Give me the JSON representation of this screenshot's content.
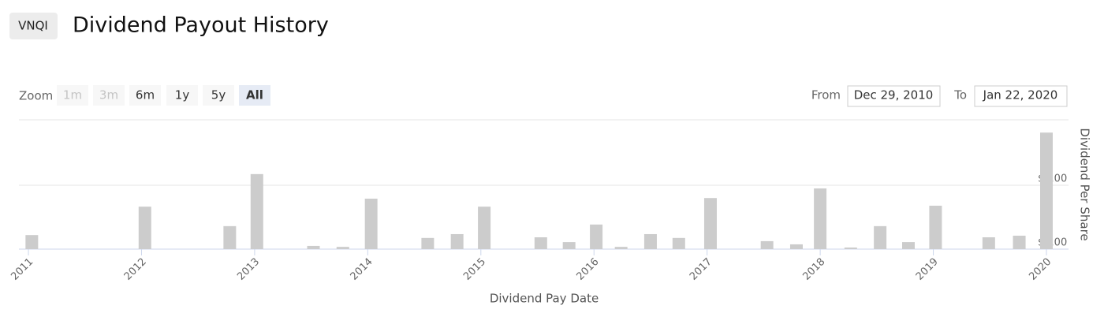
{
  "ticker": "VNQI",
  "zoom": {
    "label": "Zoom",
    "options": [
      "1m",
      "3m",
      "6m",
      "1y",
      "5y",
      "All"
    ],
    "disabled": [
      "1m",
      "3m"
    ],
    "selected": "All"
  },
  "range": {
    "from_label": "From",
    "from": "Dec 29, 2010",
    "to_label": "To",
    "to": "Jan 22, 2020"
  },
  "chart_data": {
    "type": "bar",
    "title": "Dividend Payout History",
    "x_label": "Dividend Pay Date",
    "y_label": "Dividend Per Share",
    "x": [
      2011.03,
      2012.03,
      2012.78,
      2013.02,
      2013.52,
      2013.78,
      2014.03,
      2014.53,
      2014.79,
      2015.03,
      2015.53,
      2015.78,
      2016.02,
      2016.24,
      2016.5,
      2016.75,
      2017.03,
      2017.53,
      2017.79,
      2018.0,
      2018.27,
      2018.53,
      2018.78,
      2019.02,
      2019.49,
      2019.76,
      2020.0
    ],
    "values": [
      0.44,
      1.33,
      0.72,
      2.35,
      0.1,
      0.07,
      1.58,
      0.35,
      0.47,
      1.33,
      0.37,
      0.22,
      0.77,
      0.07,
      0.47,
      0.35,
      1.6,
      0.25,
      0.15,
      1.9,
      0.05,
      0.72,
      0.22,
      1.36,
      0.37,
      0.42,
      3.65
    ],
    "color": "#cccccc",
    "xlim": [
      2010.99,
      2020.06
    ],
    "xticks": [
      2011,
      2012,
      2013,
      2014,
      2015,
      2016,
      2017,
      2018,
      2019,
      2020
    ],
    "ylim": [
      0,
      4.05
    ],
    "yticks": [
      {
        "value": 0,
        "label": "$0.00"
      },
      {
        "value": 2,
        "label": "$2.00"
      }
    ],
    "grid": true
  }
}
